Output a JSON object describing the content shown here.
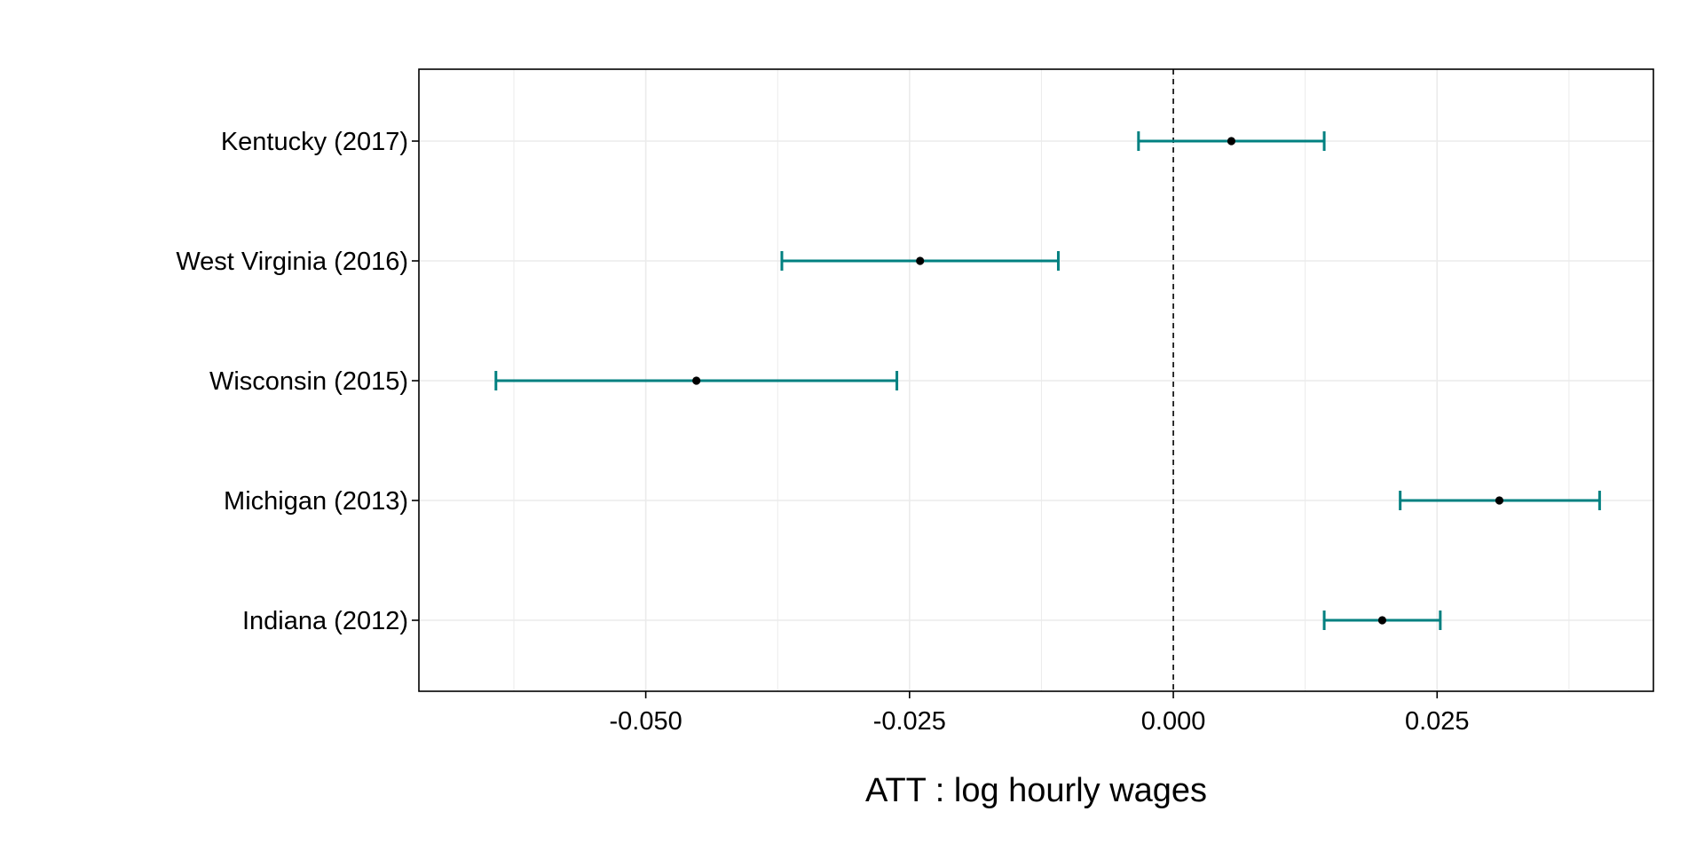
{
  "chart_data": {
    "type": "forest",
    "title": "",
    "xlabel": "ATT : log hourly wages",
    "ylabel": "",
    "xlim": [
      -0.0715,
      0.0455
    ],
    "x_ticks": [
      -0.05,
      -0.025,
      0.0,
      0.025
    ],
    "x_tick_labels": [
      "-0.050",
      "-0.025",
      "0.000",
      "0.025"
    ],
    "x_minor_ticks": [
      -0.0625,
      -0.0375,
      -0.0125,
      0.0125,
      0.0375
    ],
    "reference_line": 0.0,
    "grid": true,
    "categories": [
      "Kentucky (2017)",
      "West Virginia (2016)",
      "Wisconsin (2015)",
      "Michigan (2013)",
      "Indiana (2012)"
    ],
    "series": [
      {
        "estimates": [
          0.0055,
          -0.024,
          -0.0452,
          0.0309,
          0.0198
        ],
        "ci_lower": [
          -0.0033,
          -0.0371,
          -0.0642,
          0.0215,
          0.0143
        ],
        "ci_upper": [
          0.0143,
          -0.0109,
          -0.0262,
          0.0404,
          0.0253
        ]
      }
    ],
    "colors": {
      "ci": "#008080",
      "point": "#000000",
      "reference": "#000000",
      "grid": "#ebebeb",
      "border": "#000000"
    }
  }
}
